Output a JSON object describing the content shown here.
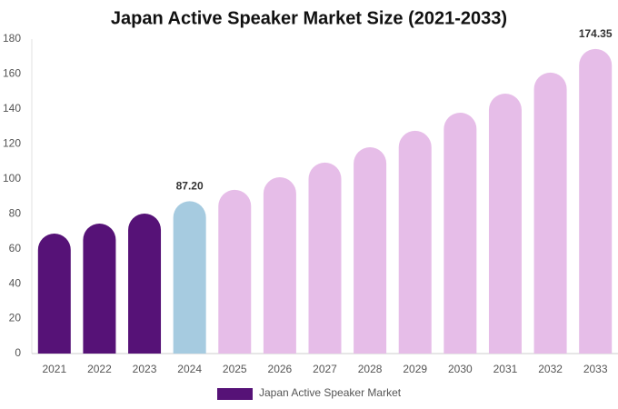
{
  "chart_data": {
    "type": "bar",
    "title": "Japan Active Speaker Market Size (2021-2033)",
    "categories": [
      "2021",
      "2022",
      "2023",
      "2024",
      "2025",
      "2026",
      "2027",
      "2028",
      "2029",
      "2030",
      "2031",
      "2032",
      "2033"
    ],
    "series": [
      {
        "name": "Japan Active Speaker Market",
        "color": "#561277",
        "values": [
          68.7,
          74.4,
          80.1,
          87.2,
          93.7,
          100.9,
          109.3,
          118.1,
          127.5,
          137.9,
          148.8,
          160.8,
          174.35
        ],
        "value_labels": [
          null,
          null,
          null,
          "87.20",
          null,
          null,
          null,
          null,
          null,
          null,
          null,
          null,
          "174.35"
        ],
        "colors": [
          "#561277",
          "#561277",
          "#561277",
          "#a6cbe0",
          "#e6bde8",
          "#e6bde8",
          "#e6bde8",
          "#e6bde8",
          "#e6bde8",
          "#e6bde8",
          "#e6bde8",
          "#e6bde8",
          "#e6bde8"
        ]
      }
    ],
    "ylim": [
      0,
      180
    ],
    "yticks": [
      0,
      20,
      40,
      60,
      80,
      100,
      120,
      140,
      160,
      180
    ],
    "grid": false
  }
}
